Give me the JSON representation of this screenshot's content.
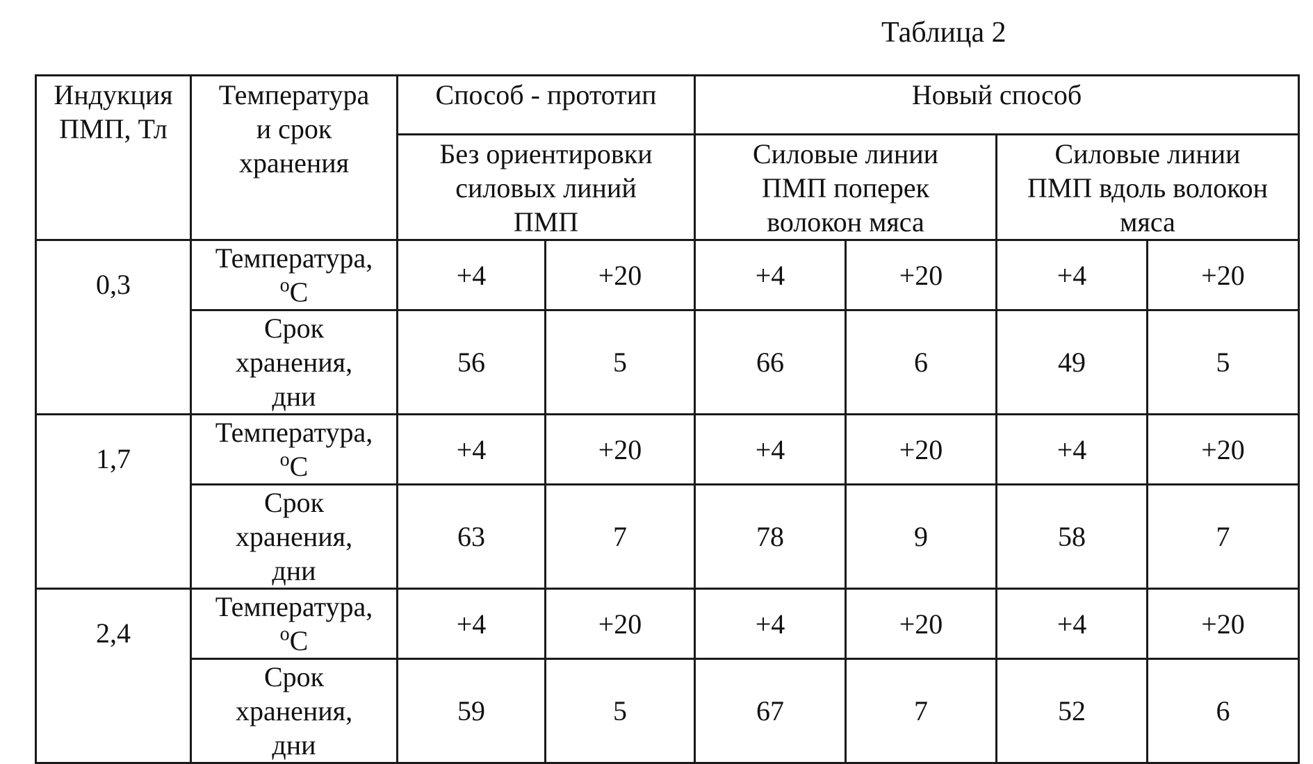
{
  "caption": "Таблица 2",
  "header": {
    "induction": [
      "Индукция",
      "ПМП, Тл"
    ],
    "temp_term": [
      "Температура",
      "и срок",
      "хранения"
    ],
    "prototype": "Способ - прототип",
    "new_method": "Новый способ",
    "prototype_sub": [
      "Без ориентировки",
      "силовых линий",
      "ПМП"
    ],
    "new_across": [
      "Силовые линии",
      "ПМП поперек",
      "волокон мяса"
    ],
    "new_along": [
      "Силовые линии",
      "ПМП вдоль волокон",
      "мяса"
    ]
  },
  "row_labels": {
    "temperature": "Температура,",
    "temperature_unit_sup": "o",
    "temperature_unit": "C",
    "term_line1": "Срок",
    "term_line2": "хранения,",
    "term_line3": "дни"
  },
  "groups": [
    {
      "induction": "0,3",
      "temps": [
        "+4",
        "+20",
        "+4",
        "+20",
        "+4",
        "+20"
      ],
      "terms": [
        "56",
        "5",
        "66",
        "6",
        "49",
        "5"
      ]
    },
    {
      "induction": "1,7",
      "temps": [
        "+4",
        "+20",
        "+4",
        "+20",
        "+4",
        "+20"
      ],
      "terms": [
        "63",
        "7",
        "78",
        "9",
        "58",
        "7"
      ]
    },
    {
      "induction": "2,4",
      "temps": [
        "+4",
        "+20",
        "+4",
        "+20",
        "+4",
        "+20"
      ],
      "terms": [
        "59",
        "5",
        "67",
        "7",
        "52",
        "6"
      ]
    }
  ]
}
